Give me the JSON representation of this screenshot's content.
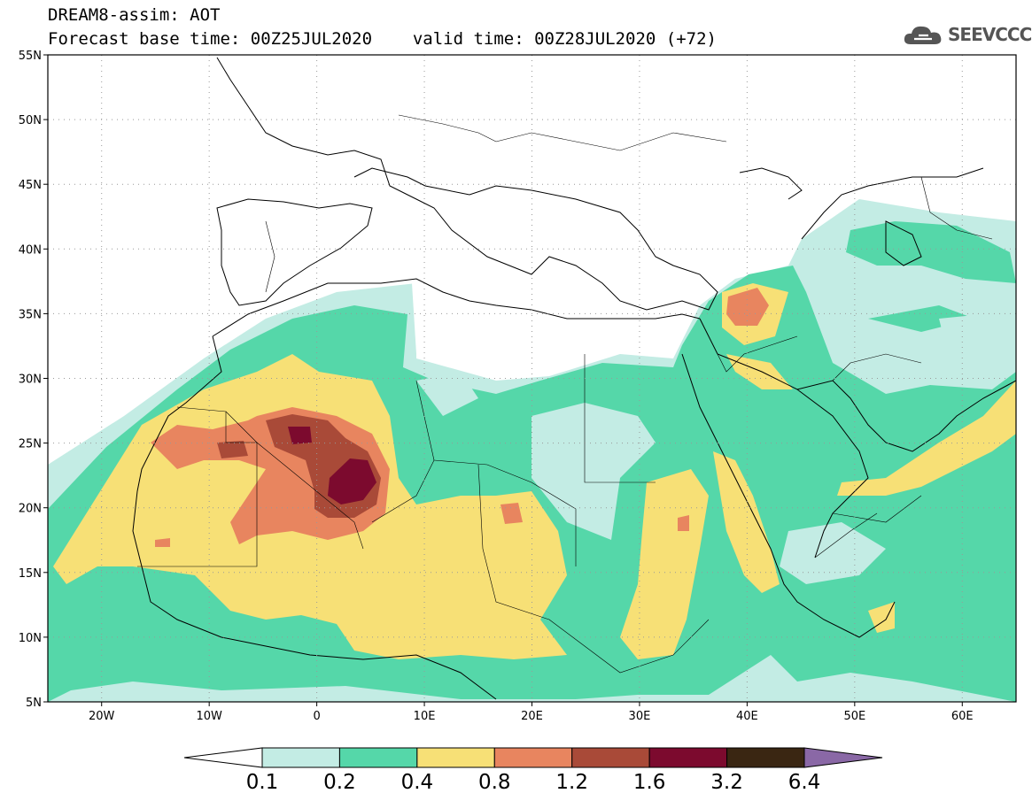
{
  "header": {
    "title": "DREAM8-assim: AOT",
    "base_time_label": "Forecast base time: 00Z25JUL2020",
    "valid_time_label": "valid time: 00Z28JUL2020 (+72)"
  },
  "logo": {
    "text": "SEEVCCC",
    "icon": "cloud-icon"
  },
  "map": {
    "lat_labels": [
      "55N",
      "50N",
      "45N",
      "40N",
      "35N",
      "30N",
      "25N",
      "20N",
      "15N",
      "10N",
      "5N"
    ],
    "lon_labels": [
      "20W",
      "10W",
      "0",
      "10E",
      "20E",
      "30E",
      "40E",
      "50E",
      "60E"
    ],
    "extent": {
      "lon_min": -25,
      "lon_max": 65,
      "lat_min": 5,
      "lat_max": 55
    }
  },
  "colorbar": {
    "labels": [
      "0.1",
      "0.2",
      "0.4",
      "0.8",
      "1.2",
      "1.6",
      "3.2",
      "6.4"
    ],
    "colors": [
      "#ffffff",
      "#c3ece4",
      "#55d7a9",
      "#f7e076",
      "#e8855f",
      "#a94a38",
      "#7c0a2e",
      "#3a2612",
      "#8a68a6"
    ]
  },
  "colors": {
    "aot_01_02": "#c3ece4",
    "aot_02_04": "#55d7a9",
    "aot_04_08": "#f7e076",
    "aot_08_12": "#e8855f",
    "aot_12_16": "#a94a38",
    "aot_16_32": "#7c0a2e"
  }
}
